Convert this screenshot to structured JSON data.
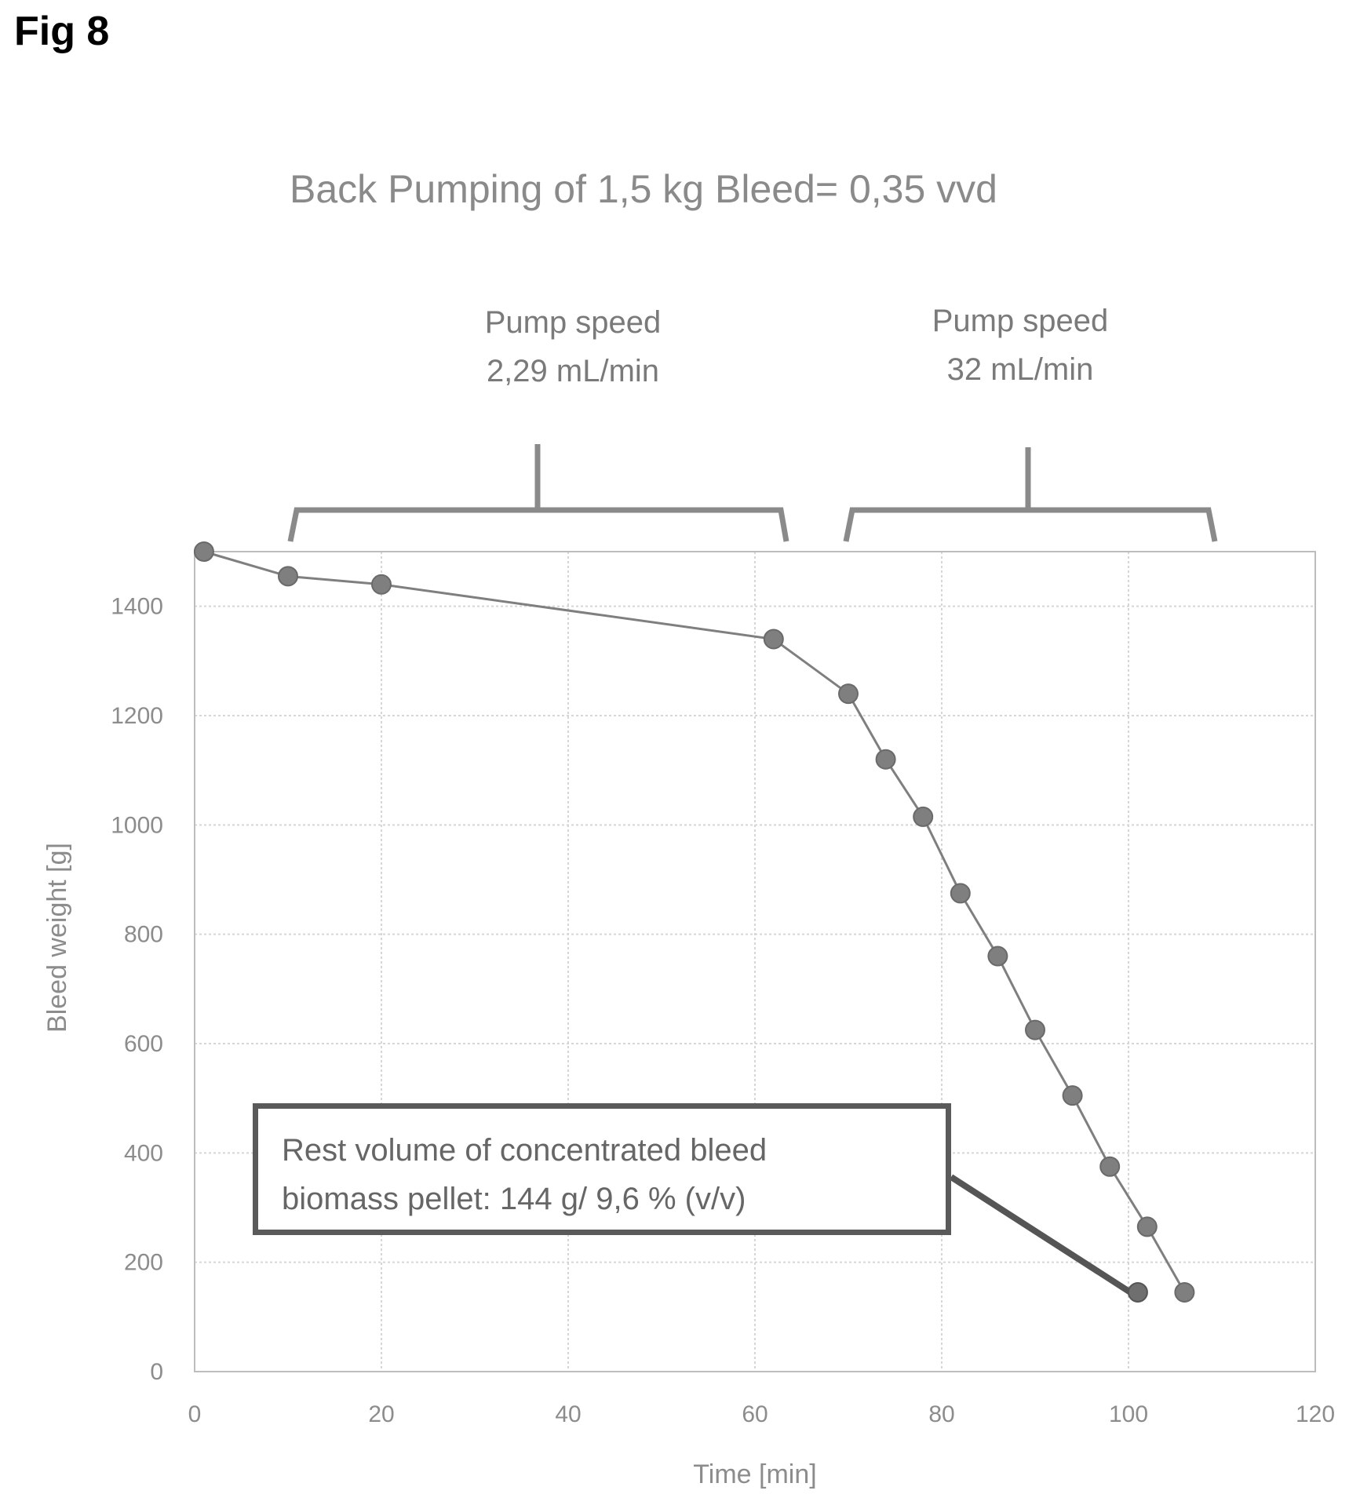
{
  "figure_label": "Fig 8",
  "annotations": {
    "phase1": [
      "Pump speed",
      "2,29 mL/min"
    ],
    "phase2": [
      "Pump speed",
      "32 mL/min"
    ],
    "callout": [
      "Rest volume of concentrated bleed",
      "biomass pellet: 144 g/ 9,6 % (v/v)"
    ]
  },
  "chart_data": {
    "type": "line",
    "title": "Back Pumping of 1,5 kg Bleed= 0,35 vvd",
    "xlabel": "Time [min]",
    "ylabel": "Bleed weight [g]",
    "xlim": [
      0,
      120
    ],
    "ylim": [
      0,
      1500
    ],
    "xticks": [
      0,
      20,
      40,
      60,
      80,
      100,
      120
    ],
    "xtick_labels": [
      "0",
      "20",
      "40",
      "60",
      "80",
      "100",
      "120"
    ],
    "yticks": [
      0,
      200,
      400,
      600,
      800,
      1000,
      1200,
      1400
    ],
    "ytick_labels": [
      "0",
      "200",
      "400",
      "600",
      "800",
      "1000",
      "1200",
      "1400"
    ],
    "grid": true,
    "series": [
      {
        "color": "#7f7f7f",
        "x": [
          1,
          10,
          20,
          62,
          70,
          74,
          78,
          82,
          86,
          90,
          94,
          98,
          102,
          106
        ],
        "y": [
          1500,
          1455,
          1440,
          1340,
          1240,
          1120,
          1015,
          875,
          760,
          625,
          505,
          375,
          265,
          145
        ]
      }
    ],
    "marker_point": {
      "x": 101,
      "y": 145
    }
  }
}
